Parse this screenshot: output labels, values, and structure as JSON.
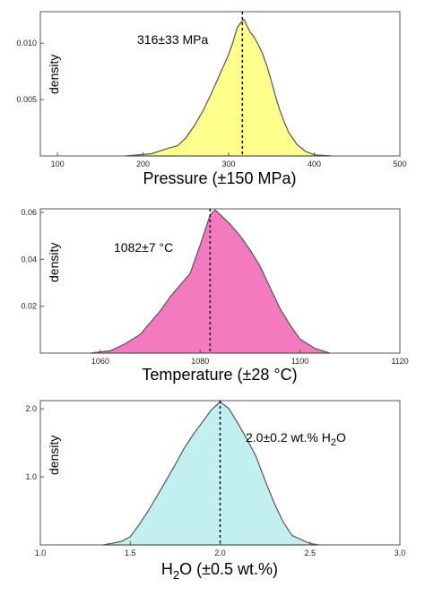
{
  "chart_data": [
    {
      "type": "area",
      "xlabel": "Pressure (±150 MPa)",
      "ylabel": "density",
      "annotation": "316±33 MPa",
      "fill": "#ffff8c",
      "xlim": [
        80,
        500
      ],
      "ylim": [
        0,
        0.0128
      ],
      "xticks": [
        100,
        200,
        300,
        400,
        500
      ],
      "yticks": [
        0.005,
        0.01
      ],
      "ytick_labels": [
        "0.005",
        "0.010"
      ],
      "marker_x": 316,
      "x": [
        180,
        210,
        230,
        240,
        250,
        260,
        270,
        280,
        290,
        300,
        305,
        310,
        315,
        318,
        321,
        325,
        330,
        335,
        340,
        345,
        350,
        355,
        360,
        365,
        370,
        380,
        390,
        400,
        420
      ],
      "y": [
        0.0,
        0.0002,
        0.0007,
        0.0009,
        0.0016,
        0.0027,
        0.004,
        0.0056,
        0.0073,
        0.009,
        0.0101,
        0.0114,
        0.0119,
        0.0121,
        0.0116,
        0.011,
        0.0105,
        0.0098,
        0.009,
        0.0079,
        0.0066,
        0.0052,
        0.004,
        0.003,
        0.0021,
        0.001,
        0.0004,
        0.0001,
        0.0
      ]
    },
    {
      "type": "area",
      "xlabel": "Temperature (±28 °C)",
      "ylabel": "density",
      "annotation": "1082±7 °C",
      "fill": "#f47ac0",
      "xlim": [
        1048,
        1120
      ],
      "ylim": [
        0,
        0.0615
      ],
      "xticks": [
        1060,
        1080,
        1100,
        1120
      ],
      "yticks": [
        0.02,
        0.04,
        0.06
      ],
      "ytick_labels": [
        "0.02",
        "0.04",
        "0.06"
      ],
      "marker_x": 1082,
      "x": [
        1058,
        1062,
        1065,
        1068,
        1070,
        1072,
        1074,
        1076,
        1078,
        1080,
        1082,
        1083,
        1084,
        1086,
        1088,
        1090,
        1092,
        1094,
        1096,
        1098,
        1100,
        1103,
        1106
      ],
      "y": [
        0.0,
        0.001,
        0.004,
        0.008,
        0.013,
        0.018,
        0.024,
        0.029,
        0.034,
        0.046,
        0.059,
        0.061,
        0.059,
        0.055,
        0.05,
        0.044,
        0.037,
        0.028,
        0.019,
        0.012,
        0.006,
        0.002,
        0.0
      ]
    },
    {
      "type": "area",
      "xlabel_main": "H",
      "xlabel_sub": "2",
      "xlabel_tail": "O (±0.5 wt.%)",
      "ylabel": "density",
      "annotation_main": "2.0±0.2 wt.% H",
      "annotation_sub": "2",
      "annotation_tail": "O",
      "fill": "#c2f0f0",
      "xlim": [
        1.0,
        3.0
      ],
      "ylim": [
        0,
        2.12
      ],
      "xticks": [
        1.0,
        1.5,
        2.0,
        2.5,
        3.0
      ],
      "xtick_labels": [
        "1.0",
        "1.5",
        "2.0",
        "2.5",
        "3.0"
      ],
      "yticks": [
        1.0,
        2.0
      ],
      "ytick_labels": [
        "1.0",
        "2.0"
      ],
      "marker_x": 2.0,
      "x": [
        1.35,
        1.45,
        1.5,
        1.55,
        1.6,
        1.65,
        1.7,
        1.75,
        1.8,
        1.85,
        1.9,
        1.95,
        2.0,
        2.05,
        2.1,
        2.15,
        2.2,
        2.25,
        2.3,
        2.35,
        2.4,
        2.5,
        2.55
      ],
      "y": [
        0.0,
        0.05,
        0.12,
        0.3,
        0.5,
        0.72,
        0.95,
        1.18,
        1.42,
        1.62,
        1.8,
        1.98,
        2.1,
        2.0,
        1.78,
        1.55,
        1.3,
        0.95,
        0.62,
        0.34,
        0.14,
        0.02,
        0.0
      ]
    }
  ]
}
